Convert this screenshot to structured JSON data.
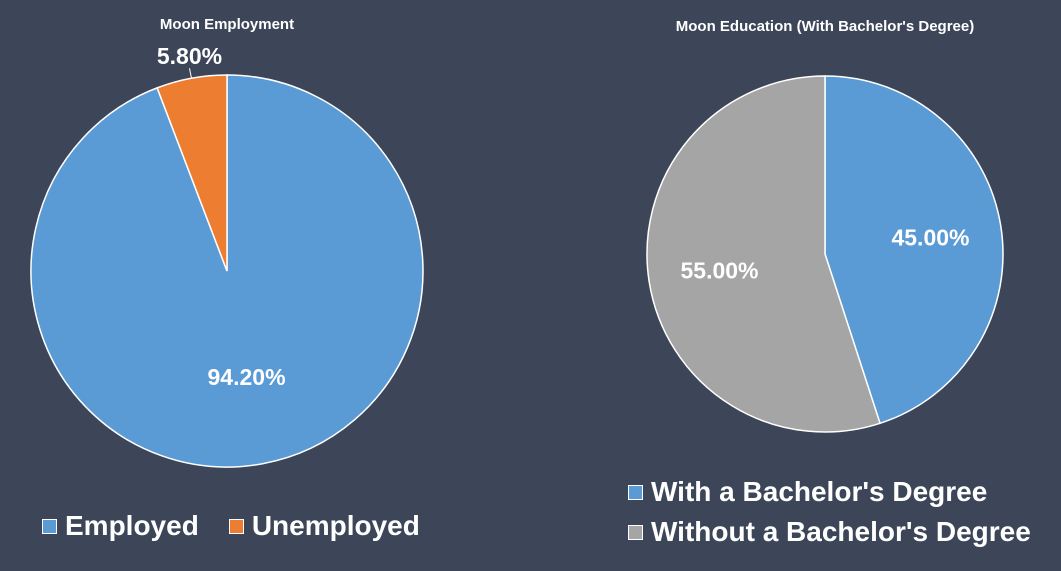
{
  "chart_data": [
    {
      "type": "pie",
      "title": "Moon Employment",
      "slices": [
        {
          "label": "Employed",
          "value": 94.2,
          "display": "94.20%",
          "color": "#5b9bd5"
        },
        {
          "label": "Unemployed",
          "value": 5.8,
          "display": "5.80%",
          "color": "#ed7d31"
        }
      ],
      "legend_position": "bottom"
    },
    {
      "type": "pie",
      "title": "Moon Education (With Bachelor's Degree)",
      "slices": [
        {
          "label": "With a Bachelor's Degree",
          "value": 45.0,
          "display": "45.00%",
          "color": "#5b9bd5"
        },
        {
          "label": "Without a Bachelor's Degree",
          "value": 55.0,
          "display": "55.00%",
          "color": "#a5a5a5"
        }
      ],
      "legend_position": "bottom"
    }
  ]
}
